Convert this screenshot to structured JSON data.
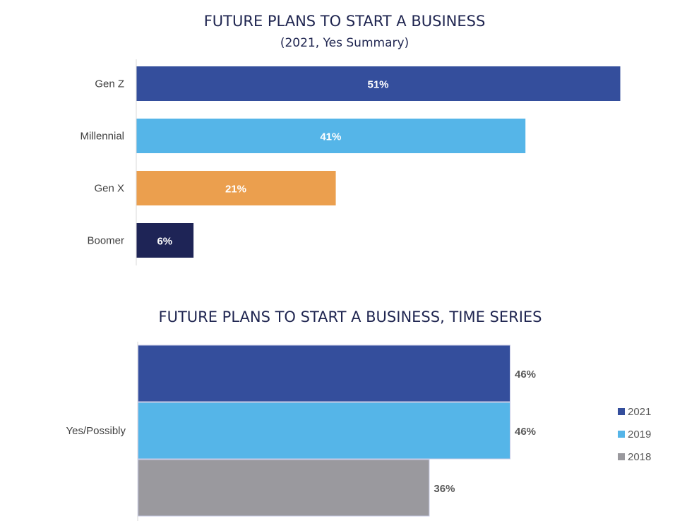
{
  "chart_data": [
    {
      "type": "bar",
      "orientation": "horizontal",
      "title": "FUTURE PLANS TO START A BUSINESS",
      "subtitle": "(2021, Yes Summary)",
      "categories": [
        "Gen Z",
        "Millennial",
        "Gen X",
        "Boomer"
      ],
      "values": [
        51,
        41,
        21,
        6
      ],
      "data_labels": [
        "51%",
        "41%",
        "21%",
        "6%"
      ],
      "colors": [
        "#344e9c",
        "#55b5e8",
        "#eb9f4e",
        "#1e2456"
      ],
      "xlim": [
        0,
        51
      ],
      "grid": false
    },
    {
      "type": "bar",
      "orientation": "horizontal",
      "title": "FUTURE PLANS TO START A BUSINESS, TIME SERIES",
      "categories": [
        "Yes/Possibly"
      ],
      "series": [
        {
          "name": "2021",
          "values": [
            46
          ],
          "label": "46%",
          "color": "#344e9c"
        },
        {
          "name": "2019",
          "values": [
            46
          ],
          "label": "46%",
          "color": "#55b5e8"
        },
        {
          "name": "2018",
          "values": [
            36
          ],
          "label": "36%",
          "color": "#9a999e"
        }
      ],
      "xlim": [
        0,
        46
      ],
      "legend": "right",
      "grid": false
    }
  ]
}
